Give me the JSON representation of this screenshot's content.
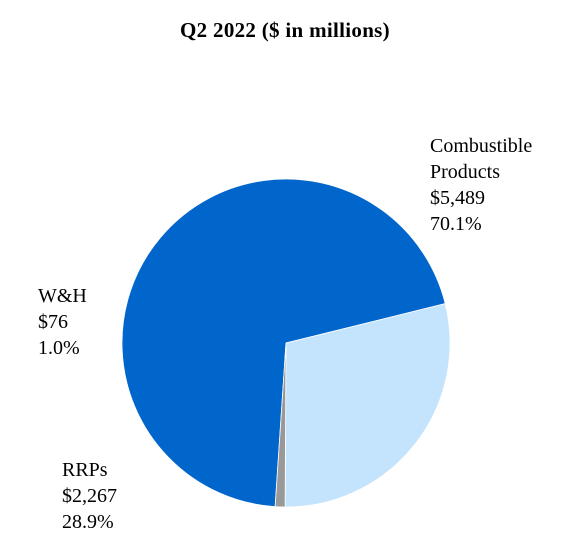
{
  "chart_data": {
    "type": "pie",
    "title": "Q2 2022 ($ in millions)",
    "slices": [
      {
        "key": "combustible",
        "label_lines": [
          "Combustible",
          "Products"
        ],
        "value": 5489,
        "value_text": "$5,489",
        "percent": 70.1,
        "percent_text": "70.1%",
        "color": "#0066CC"
      },
      {
        "key": "rrps",
        "label_lines": [
          "RRPs"
        ],
        "value": 2267,
        "value_text": "$2,267",
        "percent": 28.9,
        "percent_text": "28.9%",
        "color": "#C4E4FD"
      },
      {
        "key": "wh",
        "label_lines": [
          "W&H"
        ],
        "value": 76,
        "value_text": "$76",
        "percent": 1.0,
        "percent_text": "1.0%",
        "color": "#999999"
      }
    ],
    "legend": "none"
  }
}
